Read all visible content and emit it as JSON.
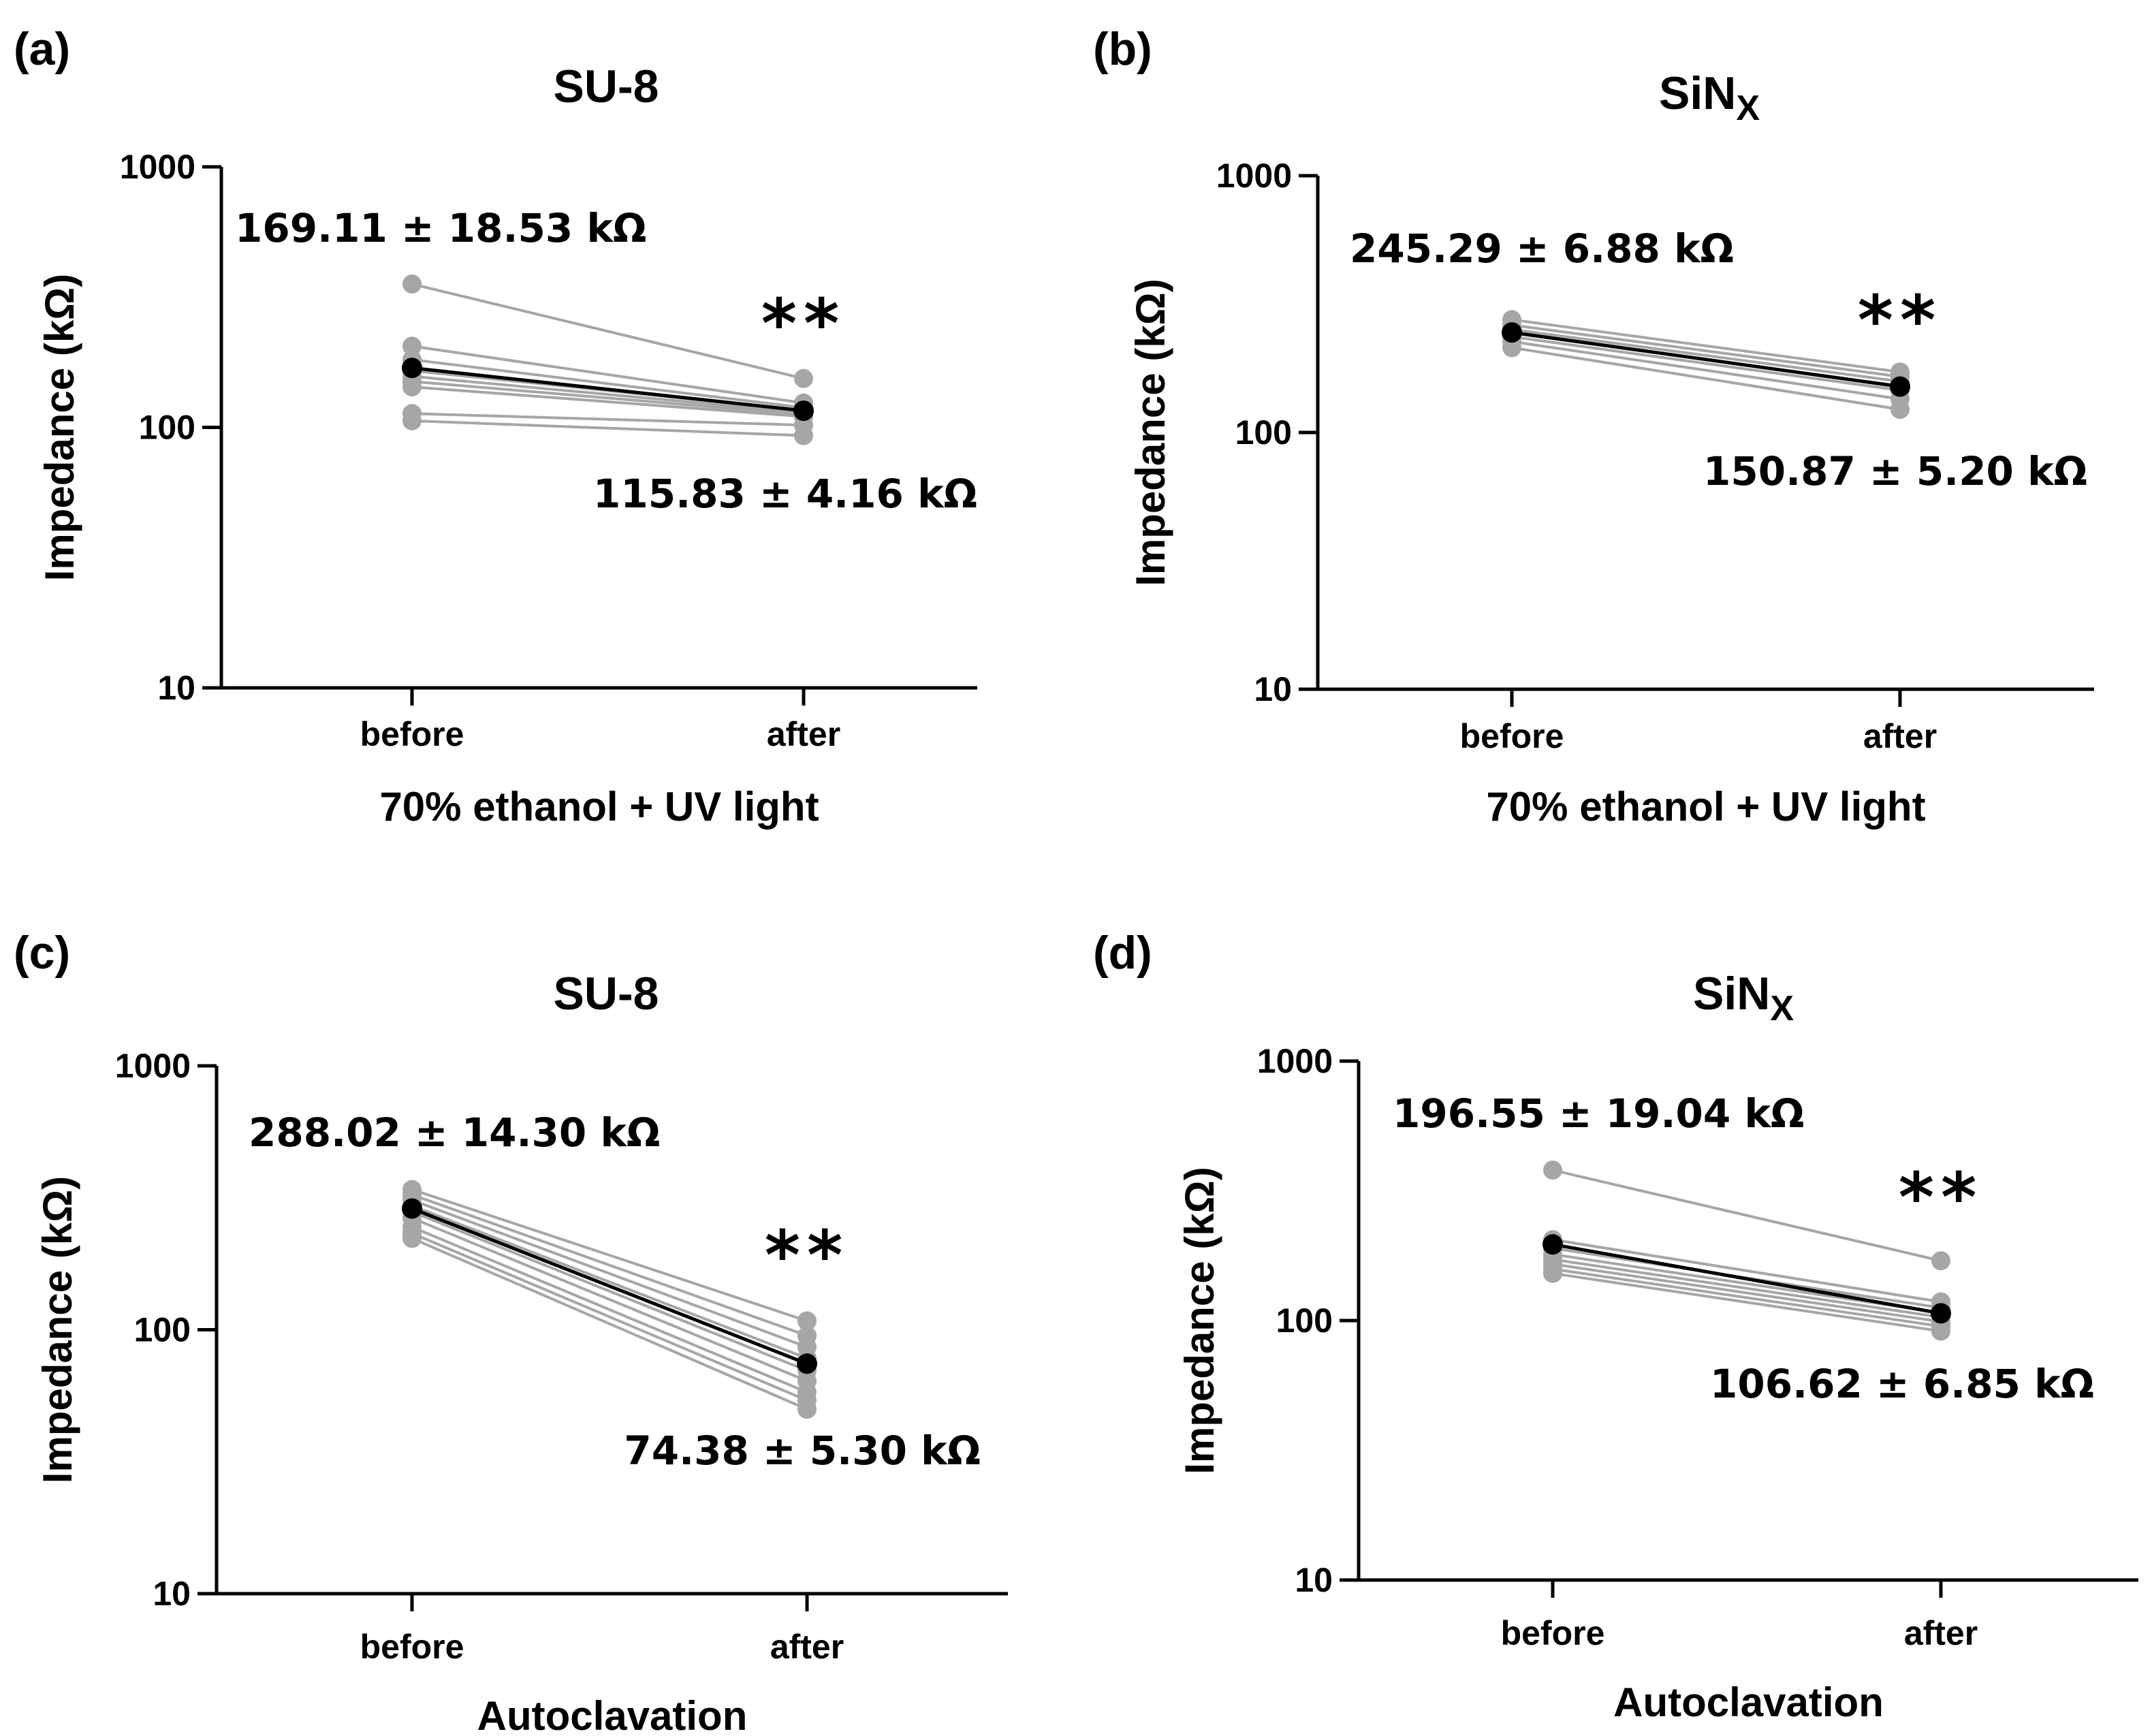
{
  "panels": [
    {
      "letter": "(a)",
      "title": "SU-8",
      "title_sub": "",
      "xlabel": "70% ethanol + UV light",
      "ylabel": "Impedance (kΩ)",
      "yticks": [
        "10",
        "100",
        "1000"
      ],
      "before_annotation": "169.11 ± 18.53 kΩ",
      "after_annotation": "115.83 ± 4.16 kΩ",
      "significance": "**"
    },
    {
      "letter": "(b)",
      "title": "SiN",
      "title_sub": "X",
      "xlabel": "70% ethanol + UV light",
      "ylabel": "Impedance (kΩ)",
      "yticks": [
        "10",
        "100",
        "1000"
      ],
      "before_annotation": "245.29 ± 6.88 kΩ",
      "after_annotation": "150.87 ± 5.20 kΩ",
      "significance": "**"
    },
    {
      "letter": "(c)",
      "title": "SU-8",
      "title_sub": "",
      "xlabel": "Autoclavation",
      "ylabel": "Impedance (kΩ)",
      "yticks": [
        "10",
        "100",
        "1000"
      ],
      "before_annotation": "288.02 ± 14.30 kΩ",
      "after_annotation": "74.38 ± 5.30 kΩ",
      "significance": "**"
    },
    {
      "letter": "(d)",
      "title": "SiN",
      "title_sub": "X",
      "xlabel": "Autoclavation",
      "ylabel": "Impedance (kΩ)",
      "yticks": [
        "10",
        "100",
        "1000"
      ],
      "before_annotation": "196.55 ± 19.04 kΩ",
      "after_annotation": "106.62 ± 6.85 kΩ",
      "significance": "**"
    }
  ],
  "chart_data": [
    {
      "type": "line",
      "title": "SU-8",
      "xlabel": "70% ethanol + UV light",
      "ylabel": "Impedance (kΩ)",
      "y_scale": "log",
      "ylim": [
        10,
        1000
      ],
      "categories": [
        "before",
        "after"
      ],
      "series": [
        {
          "values": [
            355,
            154
          ]
        },
        {
          "values": [
            205,
            124
          ]
        },
        {
          "values": [
            182,
            119
          ]
        },
        {
          "values": [
            165,
            116
          ]
        },
        {
          "values": [
            157,
            114
          ]
        },
        {
          "values": [
            150,
            112
          ]
        },
        {
          "values": [
            143,
            110
          ]
        },
        {
          "values": [
            113,
            102
          ]
        },
        {
          "values": [
            106,
            93
          ]
        },
        {
          "name": "mean",
          "values": [
            169.11,
            115.83
          ]
        }
      ],
      "colors": {
        "samples": "#a6a6a6",
        "mean": "#000000"
      }
    },
    {
      "type": "line",
      "title": "SiNX",
      "xlabel": "70% ethanol + UV light",
      "ylabel": "Impedance (kΩ)",
      "y_scale": "log",
      "ylim": [
        10,
        1000
      ],
      "categories": [
        "before",
        "after"
      ],
      "series": [
        {
          "values": [
            275,
            172
          ]
        },
        {
          "values": [
            262,
            165
          ]
        },
        {
          "values": [
            252,
            158
          ]
        },
        {
          "values": [
            244,
            152
          ]
        },
        {
          "values": [
            236,
            146
          ]
        },
        {
          "values": [
            226,
            135
          ]
        },
        {
          "values": [
            214,
            123
          ]
        },
        {
          "name": "mean",
          "values": [
            245.29,
            150.87
          ]
        }
      ],
      "colors": {
        "samples": "#a6a6a6",
        "mean": "#000000"
      }
    },
    {
      "type": "line",
      "title": "SU-8",
      "xlabel": "Autoclavation",
      "ylabel": "Impedance (kΩ)",
      "y_scale": "log",
      "ylim": [
        10,
        1000
      ],
      "categories": [
        "before",
        "after"
      ],
      "series": [
        {
          "values": [
            340,
            108
          ]
        },
        {
          "values": [
            325,
            95
          ]
        },
        {
          "values": [
            310,
            86
          ]
        },
        {
          "values": [
            295,
            78
          ]
        },
        {
          "values": [
            280,
            70
          ]
        },
        {
          "values": [
            265,
            64
          ]
        },
        {
          "values": [
            245,
            58
          ]
        },
        {
          "values": [
            232,
            54
          ]
        },
        {
          "values": [
            222,
            50
          ]
        },
        {
          "name": "mean",
          "values": [
            288.02,
            74.38
          ]
        }
      ],
      "colors": {
        "samples": "#a6a6a6",
        "mean": "#000000"
      }
    },
    {
      "type": "line",
      "title": "SiNX",
      "xlabel": "Autoclavation",
      "ylabel": "Impedance (kΩ)",
      "y_scale": "log",
      "ylim": [
        10,
        1000
      ],
      "categories": [
        "before",
        "after"
      ],
      "series": [
        {
          "values": [
            380,
            170
          ]
        },
        {
          "values": [
            205,
            118
          ]
        },
        {
          "values": [
            190,
            112
          ]
        },
        {
          "values": [
            180,
            107
          ]
        },
        {
          "values": [
            172,
            103
          ]
        },
        {
          "values": [
            165,
            99
          ]
        },
        {
          "values": [
            158,
            95
          ]
        },
        {
          "values": [
            152,
            91
          ]
        },
        {
          "name": "mean",
          "values": [
            196.55,
            106.62
          ]
        }
      ],
      "colors": {
        "samples": "#a6a6a6",
        "mean": "#000000"
      }
    }
  ]
}
